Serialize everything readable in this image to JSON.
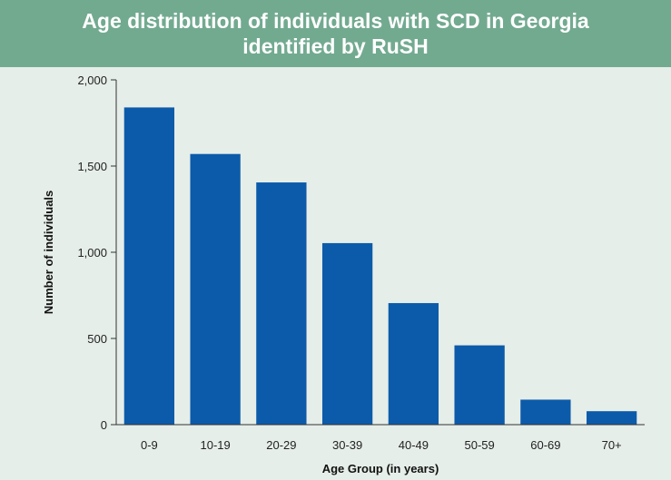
{
  "chart_data": {
    "type": "bar",
    "title_lines": [
      "Age distribution of individuals with SCD in Georgia",
      "identified by RuSH"
    ],
    "categories": [
      "0-9",
      "10-19",
      "20-29",
      "30-39",
      "40-49",
      "50-59",
      "60-69",
      "70+"
    ],
    "values": [
      1840,
      1570,
      1405,
      1053,
      705,
      460,
      145,
      78
    ],
    "xlabel": "Age Group (in years)",
    "ylabel": "Number of individuals",
    "ylim": [
      0,
      2000
    ],
    "yticks": [
      0,
      500,
      1000,
      1500,
      2000
    ],
    "ytick_labels": [
      "0",
      "500",
      "1,000",
      "1,500",
      "2,000"
    ],
    "grid": false,
    "bar_color": "#0c5baa",
    "title_background": "#72aa90",
    "plot_background": "#e6eee9"
  }
}
